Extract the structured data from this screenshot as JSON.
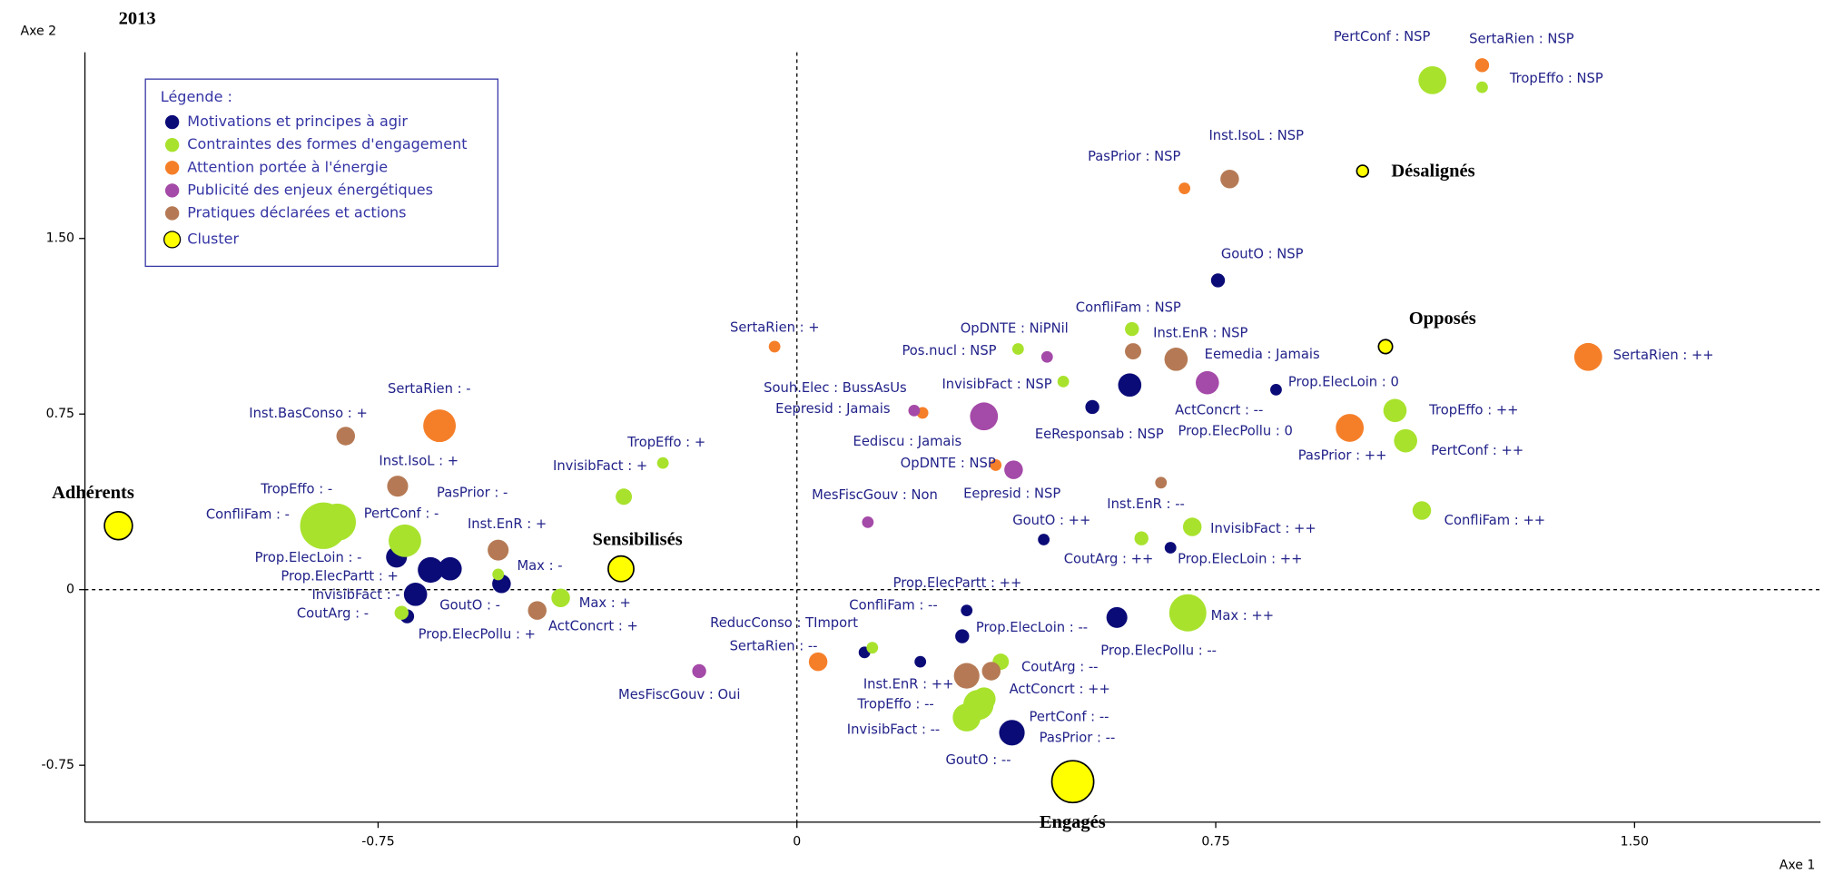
{
  "chart_data": {
    "type": "scatter",
    "title": "2013",
    "x_label": "Axe 1",
    "y_label": "Axe 2",
    "legend_title": "Légende :",
    "xlim": [
      -1.275,
      1.833
    ],
    "ylim": [
      -0.993,
      2.295
    ],
    "xticks": [
      -0.75,
      0,
      0.75,
      {
        "value": 1.5,
        "label": "1.50"
      }
    ],
    "yticks": [
      -0.75,
      0,
      0.75,
      {
        "value": 1.5,
        "label": "1.50"
      }
    ],
    "series": [
      {
        "name": "Motivations et principes à agir",
        "color": "#0b0b78",
        "labels": [
          "GoutO : NSP",
          "Prop.ElecPollu : 0",
          "Prop.ElecLoin : 0",
          "EeResponsab : NSP",
          "GoutO : ++",
          "Prop.ElecLoin : ++",
          "Prop.ElecPartt : ++",
          "Prop.ElecLoin : --",
          "Prop.ElecPollu : --",
          "ReducConso : TImport",
          "PasPrior : --",
          "GoutO : --",
          "Prop.ElecLoin : -",
          "Prop.ElecPartt : +",
          "PasPrior : -",
          "GoutO : -",
          "InvisibFact : -",
          "Prop.ElecPollu : +"
        ],
        "x": [
          0.754,
          0.596,
          0.858,
          0.529,
          0.442,
          0.669,
          0.304,
          0.296,
          0.573,
          0.121,
          0.221,
          0.385,
          -0.717,
          -0.656,
          -0.621,
          -0.529,
          -0.683,
          -0.698
        ],
        "values": [
          1.321,
          0.874,
          0.854,
          0.78,
          0.214,
          0.179,
          -0.089,
          -0.199,
          -0.119,
          -0.268,
          -0.308,
          -0.611,
          0.139,
          0.084,
          0.089,
          0.025,
          -0.02,
          -0.114
        ],
        "sizes": [
          6,
          10,
          5,
          6,
          5,
          5,
          5,
          6,
          9,
          5,
          5,
          11,
          9,
          11,
          10,
          8,
          10,
          6
        ]
      },
      {
        "name": "Contraintes des formes d'engagement",
        "color": "#a8e22d",
        "labels": [
          "PertConf : NSP",
          "TropEffo : NSP",
          "ConfliFam : NSP",
          "OpDNTE : NiPNil",
          "InvisibFact : NSP",
          "TropEffo : ++",
          "PertConf : ++",
          "ConfliFam : ++",
          "InvisibFact : ++",
          "CoutArg : ++",
          "Max : ++",
          "ConfliFam : --",
          "CoutArg : --",
          "TropEffo : --",
          "InvisibFact : --",
          "PertConf : --",
          "TropEffo : +",
          "InvisibFact : +",
          "TropEffo : -",
          "ConfliFam : -",
          "PertConf : -",
          "Max : -",
          "CoutArg : -",
          "Max : +"
        ],
        "x": [
          1.138,
          1.227,
          0.6,
          0.396,
          0.477,
          1.071,
          1.09,
          1.119,
          0.708,
          0.617,
          0.7,
          0.135,
          0.365,
          0.325,
          0.304,
          0.335,
          -0.24,
          -0.31,
          -0.848,
          -0.823,
          -0.702,
          -0.535,
          -0.708,
          -0.423
        ],
        "values": [
          2.176,
          2.146,
          1.113,
          1.028,
          0.889,
          0.765,
          0.636,
          0.338,
          0.268,
          0.219,
          -0.099,
          -0.248,
          -0.308,
          -0.492,
          -0.546,
          -0.467,
          0.541,
          0.397,
          0.273,
          0.288,
          0.209,
          0.065,
          -0.099,
          -0.035
        ],
        "sizes": [
          12,
          5,
          6,
          5,
          5,
          10,
          10,
          8,
          8,
          6,
          16,
          5,
          7,
          13,
          12,
          10,
          5,
          7,
          20,
          16,
          14,
          5,
          6,
          8
        ]
      },
      {
        "name": "Attention portée à l'énergie",
        "color": "#f57f29",
        "labels": [
          "SertaRien : NSP",
          "PasPrior : NSP",
          "SertaRien : ++",
          "SertaRien : +",
          "Souh.Elec : BussAsUs",
          "PasPrior : ++",
          "OpDNTE : NSP",
          "SertaRien : --",
          "SertaRien : -"
        ],
        "x": [
          1.227,
          0.694,
          1.417,
          -0.04,
          0.225,
          0.99,
          0.356,
          0.038,
          -0.64
        ],
        "values": [
          2.24,
          1.714,
          0.994,
          1.038,
          0.755,
          0.691,
          0.532,
          -0.308,
          0.7
        ],
        "sizes": [
          6,
          5,
          12,
          5,
          5,
          12,
          5,
          8,
          14
        ]
      },
      {
        "name": "Publicité des enjeux énergétiques",
        "color": "#a44aa8",
        "labels": [
          "Pos.nucl : NSP",
          "Eemedia : Jamais",
          "Eediscu : Jamais",
          "Eepresid : Jamais",
          "Eepresid : NSP",
          "MesFiscGouv : Non",
          "MesFiscGouv : Oui"
        ],
        "x": [
          0.448,
          0.735,
          0.335,
          0.21,
          0.388,
          0.127,
          -0.175
        ],
        "values": [
          0.994,
          0.884,
          0.74,
          0.765,
          0.512,
          0.288,
          -0.348
        ],
        "sizes": [
          5,
          10,
          12,
          5,
          8,
          5,
          6
        ]
      },
      {
        "name": "Pratiques déclarées et actions",
        "color": "#b57a55",
        "labels": [
          "Inst.IsoL : NSP",
          "ActConcrt : --",
          "Inst.EnR : NSP",
          "Inst.EnR : --",
          "ActConcrt : ++",
          "Inst.EnR : ++",
          "Inst.BasConso : +",
          "Inst.IsoL : +",
          "Inst.EnR : +",
          "ActConcrt : +"
        ],
        "x": [
          0.775,
          0.602,
          0.679,
          0.652,
          0.348,
          0.304,
          -0.808,
          -0.715,
          -0.535,
          -0.465
        ],
        "values": [
          1.754,
          1.018,
          0.984,
          0.457,
          -0.348,
          -0.368,
          0.656,
          0.442,
          0.169,
          -0.089
        ],
        "sizes": [
          8,
          7,
          10,
          5,
          8,
          11,
          8,
          9,
          9,
          8
        ]
      },
      {
        "name": "Cluster",
        "color": "#ffff00",
        "labels": [
          "Désalignés",
          "Opposés",
          "Engagés",
          "Adhérents",
          "Sensibilisés"
        ],
        "x": [
          1.013,
          1.054,
          0.494,
          -1.215,
          -0.315
        ],
        "values": [
          1.788,
          1.038,
          -0.82,
          0.273,
          0.089
        ],
        "sizes": [
          5,
          6,
          18,
          12,
          11
        ]
      }
    ]
  }
}
